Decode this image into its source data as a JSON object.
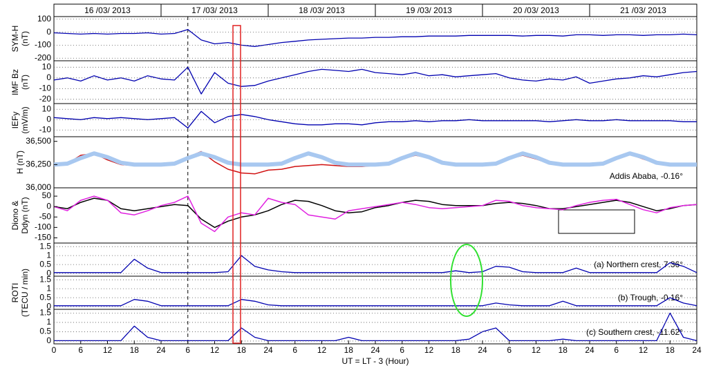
{
  "header": {
    "dates": [
      "16 /03/ 2013",
      "17 /03/ 2013",
      "18 /03/ 2013",
      "19 /03/ 2013",
      "20 /03/ 2013",
      "21 /03/ 2013"
    ]
  },
  "chart_data": [
    {
      "type": "line",
      "ylabel": [
        "SYM-H",
        "(nT)"
      ],
      "xlim": [
        0,
        144
      ],
      "ylim": [
        -220,
        120
      ],
      "yticks": [
        100,
        0,
        -100,
        -200
      ],
      "grid": true,
      "x": [
        0,
        3,
        6,
        9,
        12,
        15,
        18,
        21,
        24,
        27,
        30,
        33,
        36,
        39,
        42,
        45,
        48,
        51,
        54,
        57,
        60,
        63,
        66,
        69,
        72,
        75,
        78,
        81,
        84,
        87,
        90,
        93,
        96,
        99,
        102,
        105,
        108,
        111,
        114,
        117,
        120,
        123,
        126,
        129,
        132,
        135,
        138,
        141,
        144
      ],
      "series": [
        {
          "color": "#0000b0",
          "values": [
            -5,
            -10,
            -15,
            -10,
            -15,
            -10,
            -10,
            -5,
            -15,
            -10,
            20,
            -60,
            -90,
            -80,
            -100,
            -110,
            -95,
            -80,
            -70,
            -60,
            -55,
            -50,
            -45,
            -45,
            -40,
            -40,
            -35,
            -35,
            -30,
            -30,
            -30,
            -25,
            -25,
            -25,
            -25,
            -30,
            -25,
            -25,
            -30,
            -20,
            -20,
            -25,
            -20,
            -20,
            -25,
            -20,
            -20,
            -15,
            -20
          ]
        }
      ]
    },
    {
      "type": "line",
      "ylabel": [
        "IMF Bz",
        "(nT)"
      ],
      "xlim": [
        0,
        144
      ],
      "ylim": [
        -24,
        16
      ],
      "yticks": [
        10,
        0,
        -10,
        -20
      ],
      "grid": true,
      "x": [
        0,
        3,
        6,
        9,
        12,
        15,
        18,
        21,
        24,
        27,
        30,
        33,
        36,
        39,
        42,
        45,
        48,
        51,
        54,
        57,
        60,
        63,
        66,
        69,
        72,
        75,
        78,
        81,
        84,
        87,
        90,
        93,
        96,
        99,
        102,
        105,
        108,
        111,
        114,
        117,
        120,
        123,
        126,
        129,
        132,
        135,
        138,
        141,
        144
      ],
      "series": [
        {
          "color": "#0000b0",
          "values": [
            -2,
            0,
            -3,
            2,
            -2,
            0,
            -3,
            2,
            -1,
            -2,
            10,
            -15,
            5,
            -5,
            -8,
            -7,
            -3,
            0,
            3,
            6,
            8,
            7,
            6,
            8,
            5,
            4,
            3,
            5,
            2,
            3,
            1,
            2,
            3,
            4,
            0,
            -2,
            -3,
            -1,
            -2,
            1,
            -5,
            -3,
            -1,
            0,
            2,
            1,
            3,
            5,
            6
          ]
        }
      ]
    },
    {
      "type": "line",
      "ylabel": [
        "IEFy",
        "(mV/m)"
      ],
      "xlim": [
        0,
        144
      ],
      "ylim": [
        -16.5,
        15.5
      ],
      "yticks": [
        10,
        0,
        -10
      ],
      "grid": true,
      "x": [
        0,
        3,
        6,
        9,
        12,
        15,
        18,
        21,
        24,
        27,
        30,
        33,
        36,
        39,
        42,
        45,
        48,
        51,
        54,
        57,
        60,
        63,
        66,
        69,
        72,
        75,
        78,
        81,
        84,
        87,
        90,
        93,
        96,
        99,
        102,
        105,
        108,
        111,
        114,
        117,
        120,
        123,
        126,
        129,
        132,
        135,
        138,
        141,
        144
      ],
      "series": [
        {
          "color": "#0000b0",
          "values": [
            2,
            1,
            0,
            2,
            1,
            2,
            1,
            0,
            1,
            2,
            -8,
            8,
            -3,
            3,
            5,
            3,
            0,
            -2,
            -4,
            -5,
            -5,
            -4,
            -4,
            -5,
            -3,
            -2,
            -2,
            -1,
            -2,
            -1,
            -1,
            0,
            -1,
            -1,
            -1,
            -1,
            -1,
            -2,
            -1,
            0,
            -1,
            -1,
            0,
            -1,
            -1,
            -1,
            -1,
            -2,
            -2
          ]
        }
      ]
    },
    {
      "type": "line",
      "ylabel": [
        "H (nT)"
      ],
      "annotation": "Addis Ababa, -0.16°",
      "xlim": [
        0,
        144
      ],
      "ylim": [
        36000,
        36550
      ],
      "yticks": [
        {
          "value": 36000,
          "label": "36,000"
        },
        {
          "value": 36250,
          "label": "36,250"
        },
        {
          "value": 36500,
          "label": "36,500"
        }
      ],
      "grid": false,
      "x": [
        0,
        3,
        6,
        9,
        12,
        15,
        18,
        21,
        24,
        27,
        30,
        33,
        36,
        39,
        42,
        45,
        48,
        51,
        54,
        57,
        60,
        63,
        66,
        69,
        72,
        75,
        78,
        81,
        84,
        87,
        90,
        93,
        96,
        99,
        102,
        105,
        108,
        111,
        114,
        117,
        120,
        123,
        126,
        129,
        132,
        135,
        138,
        141,
        144
      ],
      "series": [
        {
          "color": "#a8c8f0",
          "width": 6,
          "values": [
            36250,
            36260,
            36320,
            36370,
            36330,
            36270,
            36250,
            36250,
            36250,
            36260,
            36320,
            36370,
            36330,
            36270,
            36250,
            36250,
            36250,
            36260,
            36320,
            36370,
            36330,
            36270,
            36250,
            36250,
            36250,
            36260,
            36320,
            36370,
            36330,
            36270,
            36250,
            36250,
            36250,
            36260,
            36320,
            36370,
            36330,
            36270,
            36250,
            36250,
            36250,
            36260,
            36320,
            36370,
            36330,
            36270,
            36250,
            36250,
            36250
          ]
        },
        {
          "color": "#d01010",
          "width": 1.5,
          "values": [
            36240,
            36260,
            36350,
            36370,
            36300,
            36250,
            36240,
            36240,
            36240,
            36250,
            36330,
            36390,
            36280,
            36200,
            36160,
            36150,
            36190,
            36200,
            36230,
            36240,
            36250,
            36240,
            36230,
            36230,
            36240,
            36250,
            36310,
            36350,
            36320,
            36260,
            36240,
            36240,
            36240,
            36250,
            36310,
            36350,
            36310,
            36260,
            36240,
            36240,
            36240,
            36250,
            36320,
            36360,
            36310,
            36260,
            36240,
            36240,
            36240
          ]
        }
      ]
    },
    {
      "type": "line",
      "ylabel": [
        "Diono &",
        "Ddyn (nT)"
      ],
      "xlim": [
        0,
        144
      ],
      "ylim": [
        -175,
        90
      ],
      "yticks": [
        50,
        0,
        -50,
        -100,
        -150
      ],
      "grid": false,
      "legend": "lower right",
      "x": [
        0,
        3,
        6,
        9,
        12,
        15,
        18,
        21,
        24,
        27,
        30,
        33,
        36,
        39,
        42,
        45,
        48,
        51,
        54,
        57,
        60,
        63,
        66,
        69,
        72,
        75,
        78,
        81,
        84,
        87,
        90,
        93,
        96,
        99,
        102,
        105,
        108,
        111,
        114,
        117,
        120,
        123,
        126,
        129,
        132,
        135,
        138,
        141,
        144
      ],
      "series": [
        {
          "name": "Diono",
          "color": "#e020e0",
          "width": 1.5,
          "values": [
            0,
            -20,
            30,
            50,
            30,
            -30,
            -40,
            -20,
            5,
            20,
            50,
            -80,
            -120,
            -50,
            -30,
            -40,
            40,
            20,
            10,
            -40,
            -50,
            -60,
            -20,
            -10,
            0,
            10,
            20,
            10,
            -5,
            -10,
            -5,
            0,
            5,
            30,
            25,
            5,
            -5,
            -10,
            -15,
            5,
            20,
            30,
            35,
            10,
            -15,
            -30,
            -5,
            5,
            10
          ]
        },
        {
          "name": "Ddyn",
          "color": "#000000",
          "width": 1.5,
          "values": [
            0,
            -10,
            20,
            40,
            30,
            -10,
            -20,
            -10,
            0,
            10,
            5,
            -60,
            -100,
            -70,
            -50,
            -40,
            -20,
            10,
            30,
            25,
            5,
            -20,
            -30,
            -25,
            -5,
            5,
            20,
            30,
            25,
            10,
            5,
            5,
            5,
            15,
            20,
            15,
            5,
            -10,
            -10,
            0,
            10,
            20,
            30,
            20,
            0,
            -20,
            -10,
            5,
            10
          ]
        }
      ]
    },
    {
      "type": "line",
      "annotation": "(a) Northern crest, 7.36°",
      "xlim": [
        0,
        144
      ],
      "ylim": [
        -0.15,
        1.7
      ],
      "yticks": [
        0,
        0.5,
        1,
        1.5
      ],
      "grid": true,
      "x": [
        0,
        3,
        6,
        9,
        12,
        15,
        18,
        21,
        24,
        27,
        30,
        33,
        36,
        39,
        42,
        45,
        48,
        51,
        54,
        57,
        60,
        63,
        66,
        69,
        72,
        75,
        78,
        81,
        84,
        87,
        90,
        93,
        96,
        99,
        102,
        105,
        108,
        111,
        114,
        117,
        120,
        123,
        126,
        129,
        132,
        135,
        138,
        141,
        144
      ],
      "series": [
        {
          "color": "#0000b0",
          "values": [
            0.05,
            0.05,
            0.05,
            0.05,
            0.05,
            0.05,
            0.8,
            0.3,
            0.05,
            0.05,
            0.05,
            0.05,
            0.05,
            0.1,
            1.0,
            0.4,
            0.2,
            0.1,
            0.05,
            0.05,
            0.05,
            0.05,
            0.05,
            0.05,
            0.05,
            0.05,
            0.05,
            0.05,
            0.05,
            0.05,
            0.15,
            0.05,
            0.1,
            0.4,
            0.35,
            0.1,
            0.05,
            0.05,
            0.05,
            0.3,
            0.05,
            0.05,
            0.05,
            0.05,
            0.05,
            0.05,
            0.6,
            0.4,
            0.05
          ]
        }
      ]
    },
    {
      "type": "line",
      "ylabel": [
        "ROTI",
        "(TECU / min)"
      ],
      "annotation": "(b) Trough, -0.16°",
      "xlim": [
        0,
        144
      ],
      "ylim": [
        -0.15,
        1.7
      ],
      "yticks": [
        0,
        0.5,
        1,
        1.5
      ],
      "grid": true,
      "x": [
        0,
        3,
        6,
        9,
        12,
        15,
        18,
        21,
        24,
        27,
        30,
        33,
        36,
        39,
        42,
        45,
        48,
        51,
        54,
        57,
        60,
        63,
        66,
        69,
        72,
        75,
        78,
        81,
        84,
        87,
        90,
        93,
        96,
        99,
        102,
        105,
        108,
        111,
        114,
        117,
        120,
        123,
        126,
        129,
        132,
        135,
        138,
        141,
        144
      ],
      "series": [
        {
          "color": "#0000b0",
          "values": [
            0.05,
            0.05,
            0.05,
            0.05,
            0.05,
            0.05,
            0.4,
            0.3,
            0.05,
            0.05,
            0.05,
            0.05,
            0.05,
            0.05,
            0.4,
            0.3,
            0.1,
            0.05,
            0.05,
            0.05,
            0.05,
            0.05,
            0.05,
            0.05,
            0.05,
            0.05,
            0.05,
            0.05,
            0.05,
            0.05,
            0.05,
            0.05,
            0.05,
            0.2,
            0.1,
            0.05,
            0.05,
            0.05,
            0.3,
            0.05,
            0.05,
            0.05,
            0.05,
            0.05,
            0.05,
            0.05,
            0.5,
            0.2,
            0.05
          ]
        }
      ]
    },
    {
      "type": "line",
      "annotation": "(c) Southern crest, -11.62°",
      "x_label": "UT = LT - 3 (Hour)",
      "xlim": [
        0,
        144
      ],
      "ylim": [
        -0.15,
        1.7
      ],
      "yticks": [
        0,
        0.5,
        1,
        1.5
      ],
      "grid": true,
      "xticks": [
        {
          "value": 0,
          "label": "0"
        },
        {
          "value": 6,
          "label": "6"
        },
        {
          "value": 12,
          "label": "12"
        },
        {
          "value": 18,
          "label": "18"
        },
        {
          "value": 24,
          "label": "24"
        },
        {
          "value": 30,
          "label": "6"
        },
        {
          "value": 36,
          "label": "12"
        },
        {
          "value": 42,
          "label": "18"
        },
        {
          "value": 48,
          "label": "24"
        },
        {
          "value": 54,
          "label": "6"
        },
        {
          "value": 60,
          "label": "12"
        },
        {
          "value": 66,
          "label": "18"
        },
        {
          "value": 72,
          "label": "24"
        },
        {
          "value": 78,
          "label": "6"
        },
        {
          "value": 84,
          "label": "12"
        },
        {
          "value": 90,
          "label": "18"
        },
        {
          "value": 96,
          "label": "24"
        },
        {
          "value": 102,
          "label": "6"
        },
        {
          "value": 108,
          "label": "12"
        },
        {
          "value": 114,
          "label": "18"
        },
        {
          "value": 120,
          "label": "24"
        },
        {
          "value": 126,
          "label": "6"
        },
        {
          "value": 132,
          "label": "12"
        },
        {
          "value": 138,
          "label": "18"
        },
        {
          "value": 144,
          "label": "24"
        }
      ],
      "x": [
        0,
        3,
        6,
        9,
        12,
        15,
        18,
        21,
        24,
        27,
        30,
        33,
        36,
        39,
        42,
        45,
        48,
        51,
        54,
        57,
        60,
        63,
        66,
        69,
        72,
        75,
        78,
        81,
        84,
        87,
        90,
        93,
        96,
        99,
        102,
        105,
        108,
        111,
        114,
        117,
        120,
        123,
        126,
        129,
        132,
        135,
        138,
        141,
        144
      ],
      "series": [
        {
          "color": "#0000b0",
          "values": [
            0.02,
            0.02,
            0.02,
            0.02,
            0.02,
            0.02,
            0.8,
            0.2,
            0.02,
            0.02,
            0.02,
            0.02,
            0.02,
            0.02,
            0.7,
            0.2,
            0.02,
            0.02,
            0.02,
            0.02,
            0.02,
            0.02,
            0.2,
            0.02,
            0.02,
            0.02,
            0.02,
            0.02,
            0.02,
            0.02,
            0.02,
            0.1,
            0.5,
            0.7,
            0.02,
            0.02,
            0.02,
            0.02,
            0.1,
            0.02,
            0.02,
            0.02,
            0.02,
            0.02,
            0.02,
            0.02,
            1.5,
            0.2,
            0.02
          ]
        }
      ]
    }
  ]
}
